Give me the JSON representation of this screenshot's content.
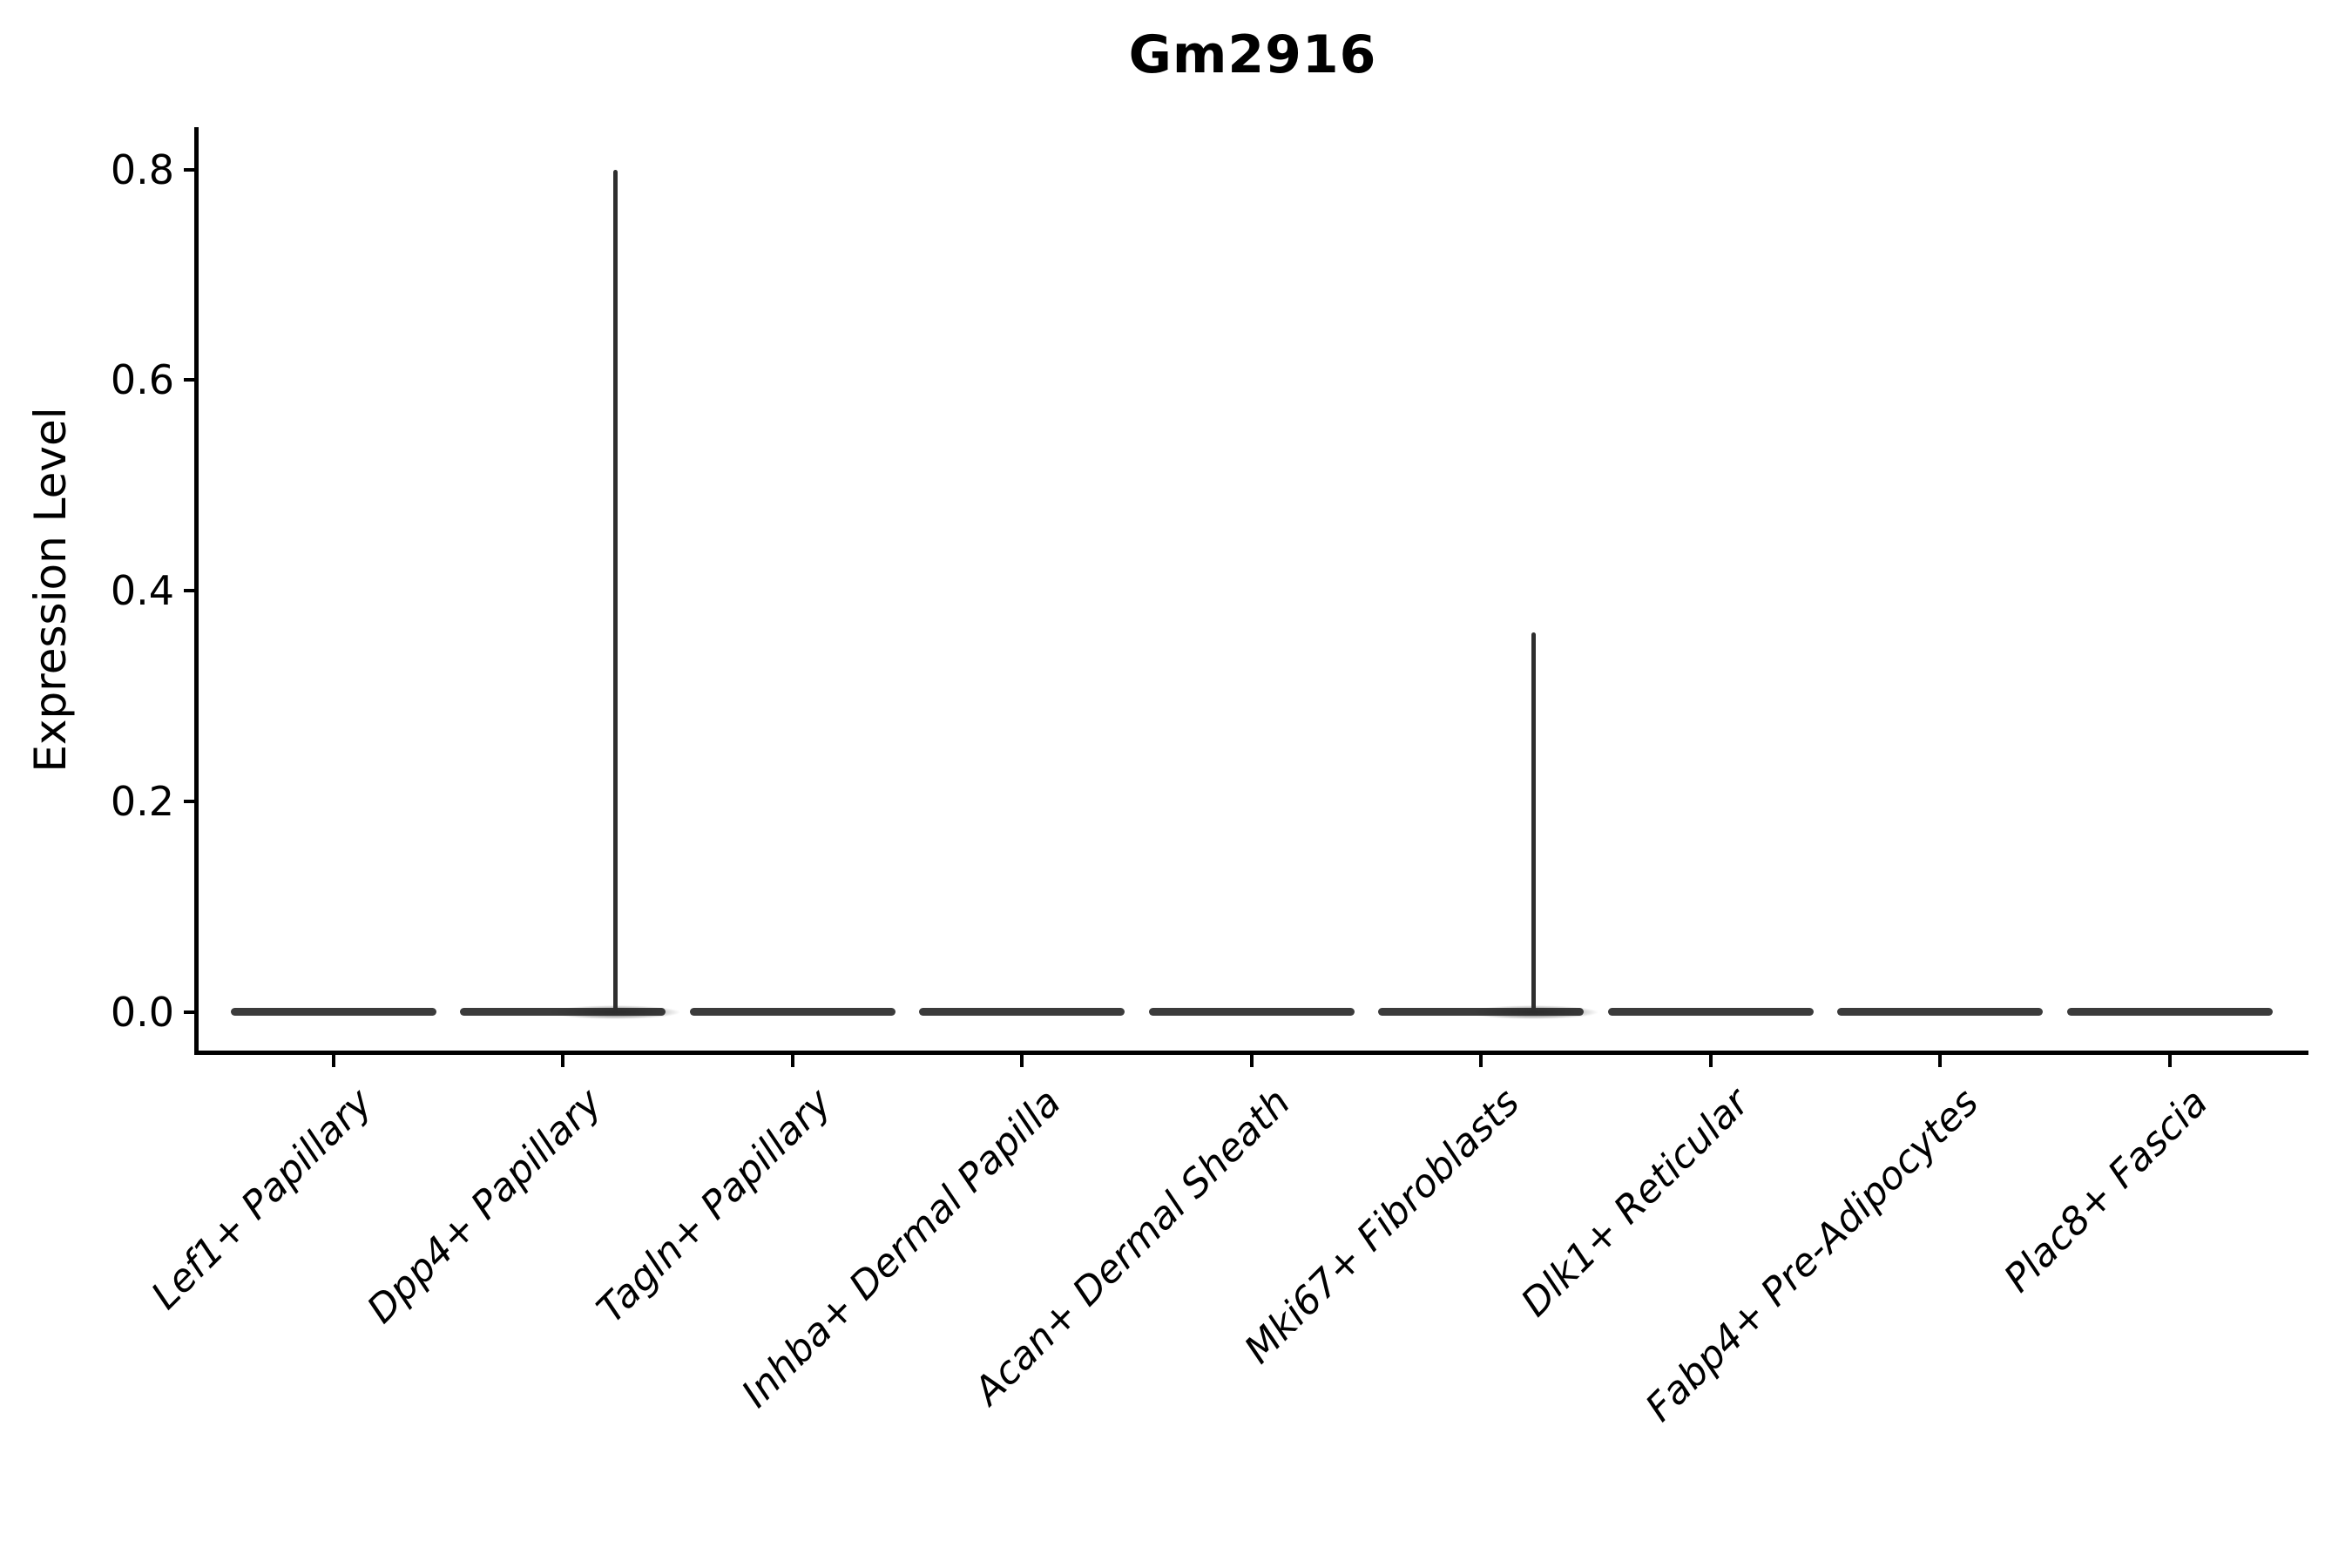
{
  "chart_data": {
    "type": "violin",
    "title": "Gm2916",
    "xlabel": "",
    "ylabel": "Expression Level",
    "yticks": [
      0.0,
      0.2,
      0.4,
      0.6,
      0.8
    ],
    "ytick_labels": [
      "0.0",
      "0.2",
      "0.4",
      "0.6",
      "0.8"
    ],
    "ylim": [
      -0.04,
      0.84
    ],
    "grid": false,
    "legend": "none",
    "x_tick_rotation": 45,
    "categories": [
      "Lef1+ Papillary",
      "Dpp4+ Papillary",
      "Tagln+ Papillary",
      "Inhba+ Dermal Papilla",
      "Acan+ Dermal Sheath",
      "Mki67+ Fibroblasts",
      "Dlk1+ Reticular",
      "Fabp4+ Pre-Adipocytes",
      "Plac8+ Fascia"
    ],
    "violins": [
      {
        "category": "Lef1+ Papillary",
        "mode_value": 0.0,
        "max_value": 0.0
      },
      {
        "category": "Dpp4+ Papillary",
        "mode_value": 0.0,
        "max_value": 0.8
      },
      {
        "category": "Tagln+ Papillary",
        "mode_value": 0.0,
        "max_value": 0.0
      },
      {
        "category": "Inhba+ Dermal Papilla",
        "mode_value": 0.0,
        "max_value": 0.0
      },
      {
        "category": "Acan+ Dermal Sheath",
        "mode_value": 0.0,
        "max_value": 0.0
      },
      {
        "category": "Mki67+ Fibroblasts",
        "mode_value": 0.0,
        "max_value": 0.36
      },
      {
        "category": "Dlk1+ Reticular",
        "mode_value": 0.0,
        "max_value": 0.0
      },
      {
        "category": "Fabp4+ Pre-Adipocytes",
        "mode_value": 0.0,
        "max_value": 0.0
      },
      {
        "category": "Plac8+ Fascia",
        "mode_value": 0.0,
        "max_value": 0.0
      }
    ],
    "description": "Violin plot of Gm2916 expression per fibroblast cluster; expression is ~0 in all clusters, with rare high-expressing cells producing thin spikes up to 0.80 (Dpp4+ Papillary) and 0.36 (Mki67+ Fibroblasts).",
    "colors": {
      "violin_outline": "#3b3b3b",
      "spike": "#2e2e2e",
      "axis": "#000000",
      "background": "#ffffff"
    }
  }
}
